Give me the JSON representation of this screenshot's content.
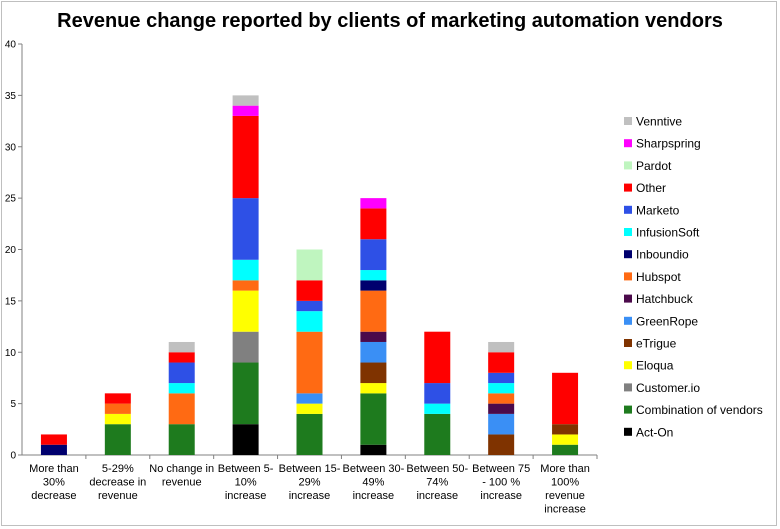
{
  "chart_data": {
    "type": "bar",
    "stacked": true,
    "title": "Revenue change reported by clients of marketing automation vendors",
    "xlabel": "",
    "ylabel": "",
    "ylim": [
      0,
      40
    ],
    "yticks": [
      0,
      5,
      10,
      15,
      20,
      25,
      30,
      35,
      40
    ],
    "grid": false,
    "legend_position": "right",
    "categories": [
      [
        "More than",
        "30%",
        "decrease"
      ],
      [
        "5-29%",
        "decrease in",
        "revenue"
      ],
      [
        "No change in",
        "revenue"
      ],
      [
        "Between 5-",
        "10%",
        "increase"
      ],
      [
        "Between 15-",
        "29%",
        "increase"
      ],
      [
        "Between 30-",
        "49%",
        "increase"
      ],
      [
        "Between 50-",
        "74%",
        "increase"
      ],
      [
        "Between 75",
        "- 100 %",
        "increase"
      ],
      [
        "More than",
        "100%",
        "revenue",
        "increase"
      ]
    ],
    "series": [
      {
        "name": "Act-On",
        "color": "#000000",
        "values": [
          0,
          0,
          0,
          3,
          0,
          1,
          0,
          0,
          0
        ]
      },
      {
        "name": "Combination of vendors",
        "color": "#1e7b1e",
        "values": [
          0,
          3,
          3,
          6,
          4,
          5,
          4,
          0,
          1
        ]
      },
      {
        "name": "Customer.io",
        "color": "#808080",
        "values": [
          0,
          0,
          0,
          3,
          0,
          0,
          0,
          0,
          0
        ]
      },
      {
        "name": "Eloqua",
        "color": "#ffff00",
        "values": [
          0,
          1,
          0,
          4,
          1,
          1,
          0,
          0,
          1
        ]
      },
      {
        "name": "eTrigue",
        "color": "#7f3300",
        "values": [
          0,
          0,
          0,
          0,
          0,
          2,
          0,
          2,
          1
        ]
      },
      {
        "name": "GreenRope",
        "color": "#3a8ff5",
        "values": [
          0,
          0,
          0,
          0,
          1,
          2,
          0,
          2,
          0
        ]
      },
      {
        "name": "Hatchbuck",
        "color": "#4b0a4b",
        "values": [
          0,
          0,
          0,
          0,
          0,
          1,
          0,
          1,
          0
        ]
      },
      {
        "name": "Hubspot",
        "color": "#ff6a13",
        "values": [
          0,
          1,
          3,
          1,
          6,
          4,
          0,
          1,
          0
        ]
      },
      {
        "name": "Inboundio",
        "color": "#00006e",
        "values": [
          1,
          0,
          0,
          0,
          0,
          1,
          0,
          0,
          0
        ]
      },
      {
        "name": "InfusionSoft",
        "color": "#00ffff",
        "values": [
          0,
          0,
          1,
          2,
          2,
          1,
          1,
          1,
          0
        ]
      },
      {
        "name": "Marketo",
        "color": "#2e50e6",
        "values": [
          0,
          0,
          2,
          6,
          1,
          3,
          2,
          1,
          0
        ]
      },
      {
        "name": "Other",
        "color": "#ff0000",
        "values": [
          1,
          1,
          1,
          8,
          2,
          3,
          5,
          2,
          5
        ]
      },
      {
        "name": "Pardot",
        "color": "#bff5bf",
        "values": [
          0,
          0,
          0,
          0,
          3,
          0,
          0,
          0,
          0
        ]
      },
      {
        "name": "Sharpspring",
        "color": "#ff00ff",
        "values": [
          0,
          0,
          0,
          1,
          0,
          1,
          0,
          0,
          0
        ]
      },
      {
        "name": "Venntive",
        "color": "#c0c0c0",
        "values": [
          0,
          0,
          1,
          1,
          0,
          0,
          0,
          1,
          0
        ]
      }
    ]
  }
}
